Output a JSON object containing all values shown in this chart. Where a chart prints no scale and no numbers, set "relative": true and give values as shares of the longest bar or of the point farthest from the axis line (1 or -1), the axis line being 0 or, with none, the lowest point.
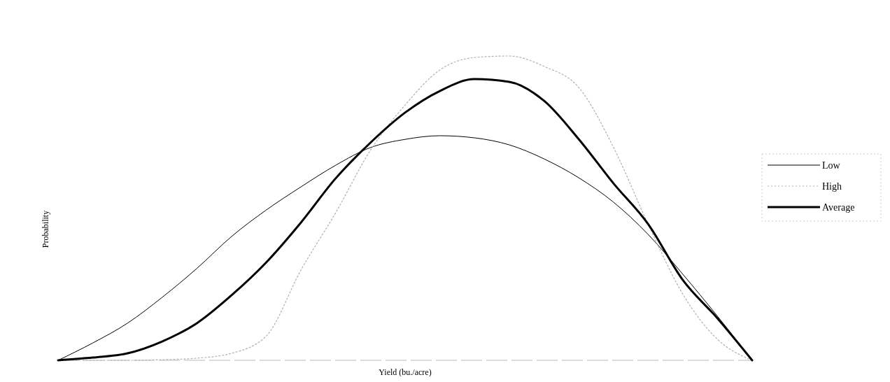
{
  "chart_data": {
    "type": "line",
    "xlabel": "Yield (bu./acre)",
    "ylabel": "Probability",
    "relative": true,
    "legend": "right",
    "marker": "none",
    "categories": [
      null,
      null,
      null,
      null,
      null,
      null,
      null,
      null,
      null,
      null,
      null,
      null,
      null,
      null,
      null,
      null,
      null,
      null,
      null,
      null,
      null
    ],
    "series": [
      {
        "name": "Low",
        "color": "#000000",
        "line_style": "solid",
        "values": [
          0,
          0.057,
          0.122,
          0.207,
          0.302,
          0.407,
          0.494,
          0.57,
          0.641,
          0.699,
          0.726,
          0.738,
          0.731,
          0.708,
          0.662,
          0.6,
          0.52,
          0.414,
          0.283,
          0.145,
          0
        ]
      },
      {
        "name": "High",
        "color": "#b0b0b0",
        "line_style": "dotted",
        "values": [
          0,
          0,
          0,
          0.002,
          0.007,
          0.023,
          0.08,
          0.297,
          0.485,
          0.69,
          0.839,
          0.954,
          0.995,
          1,
          0.966,
          0.897,
          0.701,
          0.448,
          0.218,
          0.069,
          0
        ]
      },
      {
        "name": "Average",
        "color": "#000000",
        "line_style": "solid",
        "values": [
          0,
          0.009,
          0.023,
          0.062,
          0.122,
          0.214,
          0.322,
          0.453,
          0.598,
          0.715,
          0.814,
          0.885,
          0.924,
          0.915,
          0.853,
          0.727,
          0.582,
          0.448,
          0.264,
          0.138,
          0
        ]
      }
    ]
  }
}
